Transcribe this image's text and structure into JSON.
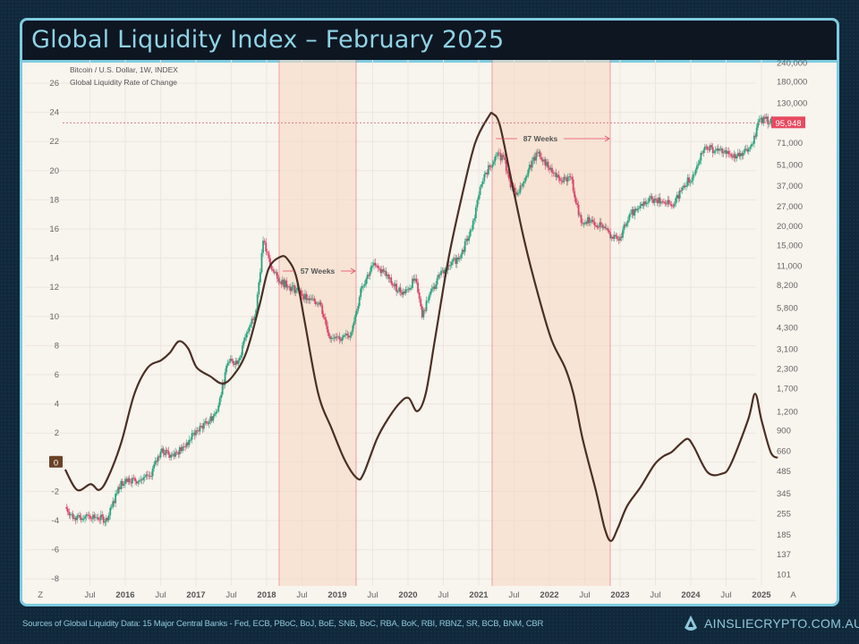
{
  "header": {
    "title": "Global Liquidity Index – February 2025"
  },
  "footer": {
    "sources": "Sources of Global Liquidity Data: 15 Major Central Banks - Fed, ECB, PBoC, BoJ, BoE, SNB, BoC, RBA, BoK, RBI, RBNZ, SR, BCB, BNM, CBR",
    "brand": "AINSLIECRYPTO.COM.AU"
  },
  "colors": {
    "liquidity": "#4a2f24",
    "up": "#2aa37f",
    "down": "#d9436a",
    "shade": "#f6d9c4",
    "marker": "#e84a5f",
    "frame": "#7fcbe0"
  },
  "chart_data": {
    "type": "line",
    "legend": [
      "Bitcoin / U.S. Dollar, 1W, INDEX",
      "Global Liquidity Rate of Change"
    ],
    "left_axis": {
      "ticks": [
        26,
        24,
        22,
        20,
        18,
        16,
        14,
        12,
        10,
        8,
        6,
        4,
        2,
        0,
        -2,
        -4,
        -6,
        -8
      ],
      "ylim": [
        -8.5,
        27.3
      ],
      "current_label": "0"
    },
    "right_axis": {
      "scale": "log",
      "ticks": [
        "240,000",
        "180,000",
        "130,000",
        "71,000",
        "51,000",
        "37,000",
        "27,000",
        "20,000",
        "15,000",
        "11,000",
        "8,200",
        "5,800",
        "4,300",
        "3,100",
        "2,300",
        "1,700",
        "1,200",
        "900",
        "660",
        "485",
        "345",
        "255",
        "185",
        "137",
        "101"
      ],
      "tick_values": [
        240000,
        180000,
        130000,
        71000,
        51000,
        37000,
        27000,
        20000,
        15000,
        11000,
        8200,
        5800,
        4300,
        3100,
        2300,
        1700,
        1200,
        900,
        660,
        485,
        345,
        255,
        185,
        137,
        101
      ],
      "last_price_label": "95,948",
      "last_price": 95948
    },
    "x_axis": {
      "ticks": [
        "Z",
        "Jul",
        "2016",
        "Jul",
        "2017",
        "Jul",
        "2018",
        "Jul",
        "2019",
        "Jul",
        "2020",
        "Jul",
        "2021",
        "Jul",
        "2022",
        "Jul",
        "2023",
        "Jul",
        "2024",
        "Jul",
        "2025",
        "A"
      ],
      "xlim": [
        2015.0,
        2025.5
      ]
    },
    "shaded_periods": [
      {
        "start": 2018.2,
        "end": 2019.3,
        "label": "57 Weeks"
      },
      {
        "start": 2021.2,
        "end": 2022.9,
        "label": "87 Weeks"
      }
    ],
    "series": [
      {
        "name": "Global Liquidity Rate of Change",
        "axis": "left",
        "x": [
          2015.15,
          2015.32,
          2015.51,
          2015.63,
          2015.75,
          2015.94,
          2016.13,
          2016.32,
          2016.51,
          2016.63,
          2016.76,
          2016.89,
          2017.01,
          2017.2,
          2017.37,
          2017.52,
          2017.71,
          2017.9,
          2018.03,
          2018.2,
          2018.3,
          2018.42,
          2018.54,
          2018.73,
          2018.92,
          2019.11,
          2019.28,
          2019.37,
          2019.56,
          2019.72,
          2019.89,
          2020.01,
          2020.13,
          2020.25,
          2020.38,
          2020.57,
          2020.76,
          2020.95,
          2021.14,
          2021.2,
          2021.3,
          2021.46,
          2021.65,
          2021.84,
          2022.03,
          2022.22,
          2022.34,
          2022.47,
          2022.66,
          2022.78,
          2022.87,
          2022.97,
          2023.1,
          2023.29,
          2023.48,
          2023.61,
          2023.73,
          2023.86,
          2023.96,
          2024.05,
          2024.24,
          2024.43,
          2024.56,
          2024.81,
          2024.91,
          2025.0,
          2025.13,
          2025.23
        ],
        "values": [
          -0.5,
          -1.9,
          -1.5,
          -1.9,
          -1.1,
          1.3,
          4.7,
          6.5,
          7.0,
          7.5,
          8.3,
          7.8,
          6.5,
          5.9,
          5.4,
          5.9,
          7.5,
          10.8,
          13.3,
          14.1,
          13.9,
          12.7,
          9.6,
          4.7,
          2.3,
          0.1,
          -1.1,
          -0.8,
          1.6,
          3.0,
          4.1,
          4.4,
          3.5,
          4.7,
          8.4,
          13.9,
          18.2,
          21.9,
          23.7,
          23.9,
          23.1,
          19.4,
          15.1,
          11.5,
          8.4,
          6.5,
          4.7,
          1.6,
          -2.0,
          -4.5,
          -5.4,
          -4.5,
          -3.0,
          -1.7,
          -0.2,
          0.4,
          0.7,
          1.3,
          1.6,
          1.0,
          -0.7,
          -0.8,
          -0.2,
          2.9,
          4.7,
          2.9,
          0.7,
          0.3
        ]
      },
      {
        "name": "Bitcoin / U.S. Dollar, 1W, INDEX",
        "axis": "right",
        "x": [
          2015.15,
          2015.3,
          2015.45,
          2015.6,
          2015.75,
          2015.9,
          2016.0,
          2016.2,
          2016.35,
          2016.5,
          2016.65,
          2016.85,
          2017.0,
          2017.15,
          2017.3,
          2017.45,
          2017.6,
          2017.75,
          2017.85,
          2017.95,
          2018.05,
          2018.15,
          2018.3,
          2018.45,
          2018.6,
          2018.75,
          2018.9,
          2019.05,
          2019.2,
          2019.35,
          2019.5,
          2019.65,
          2019.8,
          2019.95,
          2020.1,
          2020.2,
          2020.3,
          2020.45,
          2020.6,
          2020.75,
          2020.9,
          2021.0,
          2021.1,
          2021.25,
          2021.35,
          2021.45,
          2021.55,
          2021.7,
          2021.85,
          2022.0,
          2022.15,
          2022.3,
          2022.45,
          2022.6,
          2022.75,
          2022.9,
          2023.0,
          2023.15,
          2023.3,
          2023.45,
          2023.6,
          2023.75,
          2023.9,
          2024.05,
          2024.2,
          2024.35,
          2024.5,
          2024.65,
          2024.8,
          2024.88,
          2024.95,
          2025.05,
          2025.15
        ],
        "values": [
          280,
          230,
          250,
          240,
          230,
          380,
          430,
          420,
          450,
          650,
          620,
          700,
          900,
          1000,
          1200,
          2500,
          2600,
          4300,
          5600,
          16000,
          11000,
          9000,
          8000,
          7500,
          6500,
          6300,
          3600,
          3500,
          4000,
          8000,
          11000,
          10000,
          8000,
          7200,
          9000,
          5000,
          7000,
          9500,
          11000,
          13000,
          19000,
          32000,
          45000,
          58000,
          57000,
          36000,
          33000,
          47000,
          62000,
          47000,
          40000,
          42000,
          21000,
          22000,
          19500,
          16500,
          17000,
          24000,
          28000,
          30000,
          29000,
          27000,
          37000,
          44000,
          67000,
          63000,
          60000,
          58000,
          62000,
          70000,
          97000,
          102000,
          96000
        ]
      }
    ]
  }
}
